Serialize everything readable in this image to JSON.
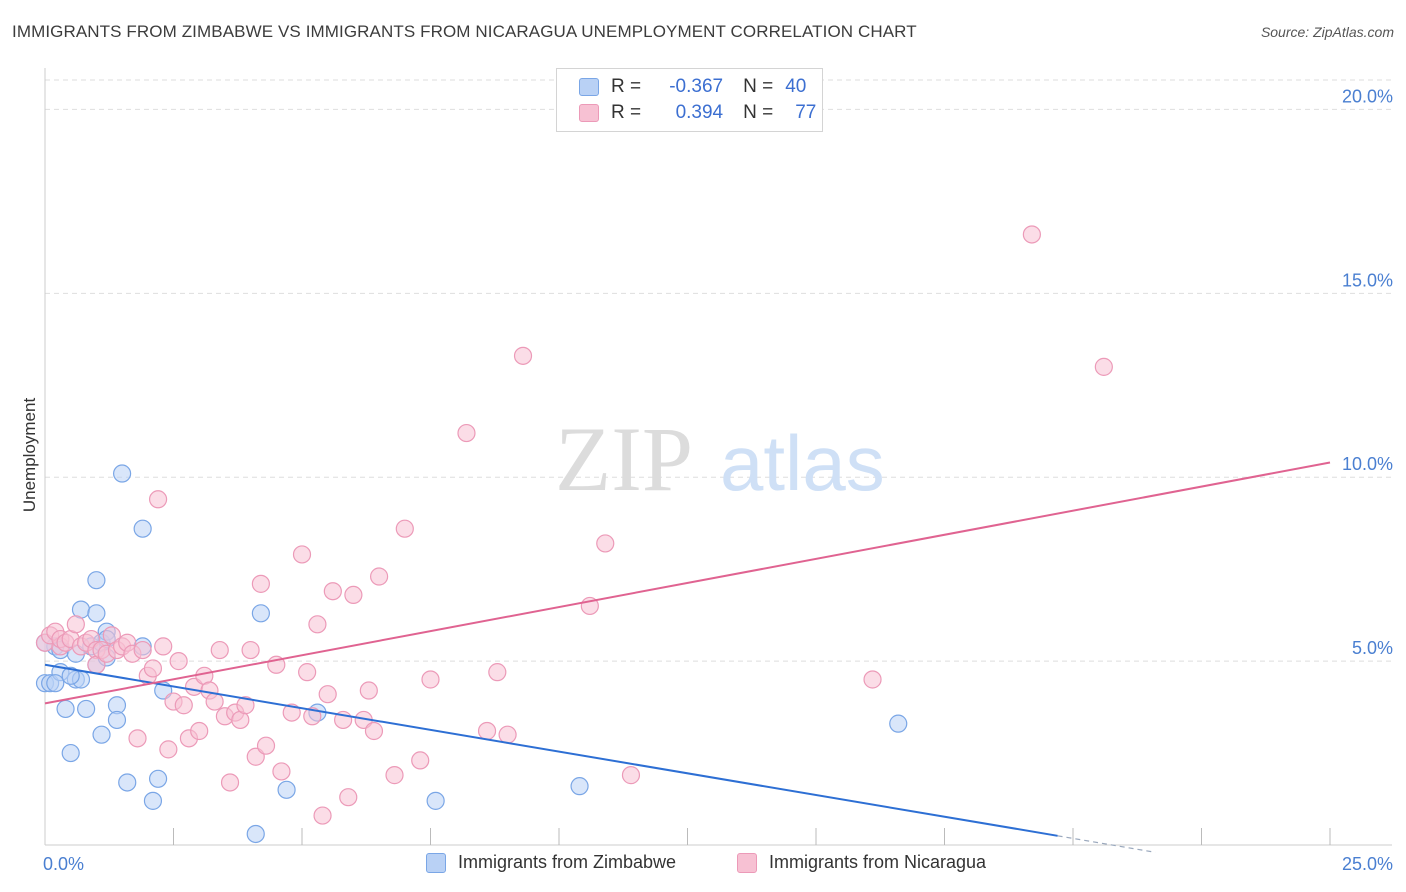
{
  "header": {
    "title": "IMMIGRANTS FROM ZIMBABWE VS IMMIGRANTS FROM NICARAGUA UNEMPLOYMENT CORRELATION CHART",
    "source": "Source: ZipAtlas.com"
  },
  "watermark": {
    "zip": "ZIP",
    "atlas": "atlas"
  },
  "legend": {
    "rows": [
      {
        "r_label": "R =",
        "r_value": "-0.367",
        "n_label": "N =",
        "n_value": "40"
      },
      {
        "r_label": "R =",
        "r_value": "0.394",
        "n_label": "N =",
        "n_value": "77"
      }
    ]
  },
  "bottom_legend": {
    "zimbabwe": "Immigrants from Zimbabwe",
    "nicaragua": "Immigrants from Nicaragua"
  },
  "colors": {
    "zimbabwe_fill": "#b9d1f5",
    "zimbabwe_stroke": "#7aa6e6",
    "zimbabwe_line": "#2d6fd4",
    "nicaragua_fill": "#f7c1d3",
    "nicaragua_stroke": "#ec9ab8",
    "nicaragua_line": "#e06391",
    "tick_text": "#4a7fd1",
    "grid": "#dedede"
  },
  "chart_data": {
    "type": "scatter",
    "title": "IMMIGRANTS FROM ZIMBABWE VS IMMIGRANTS FROM NICARAGUA UNEMPLOYMENT CORRELATION CHART",
    "xlabel": "",
    "ylabel": "Unemployment",
    "xlim": [
      0,
      25
    ],
    "ylim": [
      0,
      20.8
    ],
    "x_tick_labels": [
      "0.0%",
      "25.0%"
    ],
    "y_ticks": [
      5,
      10,
      15,
      20
    ],
    "y_tick_labels": [
      "5.0%",
      "10.0%",
      "15.0%",
      "20.0%"
    ],
    "grid": true,
    "series": [
      {
        "name": "Immigrants from Zimbabwe",
        "color": "#b9d1f5",
        "R": -0.367,
        "N": 40,
        "trend": {
          "x0": 0,
          "y0": 4.9,
          "x1": 19.7,
          "y1": 0.25,
          "dash_to_x": 21.6
        },
        "points": [
          [
            0.0,
            4.4
          ],
          [
            0.1,
            4.4
          ],
          [
            0.2,
            5.4
          ],
          [
            0.3,
            5.3
          ],
          [
            0.3,
            4.7
          ],
          [
            0.4,
            3.7
          ],
          [
            0.5,
            2.5
          ],
          [
            0.6,
            5.2
          ],
          [
            0.6,
            4.5
          ],
          [
            0.7,
            6.4
          ],
          [
            0.7,
            4.5
          ],
          [
            0.8,
            3.7
          ],
          [
            0.9,
            5.4
          ],
          [
            1.0,
            6.3
          ],
          [
            1.0,
            4.9
          ],
          [
            1.0,
            7.2
          ],
          [
            1.1,
            3.0
          ],
          [
            1.1,
            5.5
          ],
          [
            1.2,
            5.8
          ],
          [
            1.2,
            5.1
          ],
          [
            1.4,
            3.8
          ],
          [
            1.4,
            3.4
          ],
          [
            1.5,
            10.1
          ],
          [
            1.6,
            1.7
          ],
          [
            1.9,
            8.6
          ],
          [
            1.9,
            5.4
          ],
          [
            2.1,
            1.2
          ],
          [
            2.2,
            1.8
          ],
          [
            2.3,
            4.2
          ],
          [
            4.1,
            0.3
          ],
          [
            4.2,
            6.3
          ],
          [
            4.7,
            1.5
          ],
          [
            5.3,
            3.6
          ],
          [
            7.6,
            1.2
          ],
          [
            10.4,
            1.6
          ],
          [
            16.6,
            3.3
          ],
          [
            0.0,
            5.5
          ],
          [
            0.2,
            4.4
          ],
          [
            0.5,
            4.6
          ],
          [
            1.2,
            5.6
          ]
        ]
      },
      {
        "name": "Immigrants from Nicaragua",
        "color": "#f7c1d3",
        "R": 0.394,
        "N": 77,
        "trend": {
          "x0": 0,
          "y0": 3.85,
          "x1": 25,
          "y1": 10.4
        },
        "points": [
          [
            0.0,
            5.5
          ],
          [
            0.1,
            5.7
          ],
          [
            0.2,
            5.8
          ],
          [
            0.3,
            5.4
          ],
          [
            0.3,
            5.6
          ],
          [
            0.4,
            5.5
          ],
          [
            0.5,
            5.6
          ],
          [
            0.6,
            6.0
          ],
          [
            0.7,
            5.4
          ],
          [
            0.8,
            5.5
          ],
          [
            0.9,
            5.6
          ],
          [
            1.0,
            5.3
          ],
          [
            1.0,
            4.9
          ],
          [
            1.1,
            5.3
          ],
          [
            1.2,
            5.2
          ],
          [
            1.3,
            5.7
          ],
          [
            1.4,
            5.3
          ],
          [
            1.5,
            5.4
          ],
          [
            1.6,
            5.5
          ],
          [
            1.7,
            5.2
          ],
          [
            1.8,
            2.9
          ],
          [
            1.9,
            5.3
          ],
          [
            2.0,
            4.6
          ],
          [
            2.1,
            4.8
          ],
          [
            2.2,
            9.4
          ],
          [
            2.3,
            5.4
          ],
          [
            2.4,
            2.6
          ],
          [
            2.5,
            3.9
          ],
          [
            2.6,
            5.0
          ],
          [
            2.7,
            3.8
          ],
          [
            2.8,
            2.9
          ],
          [
            2.9,
            4.3
          ],
          [
            3.0,
            3.1
          ],
          [
            3.1,
            4.6
          ],
          [
            3.2,
            4.2
          ],
          [
            3.3,
            3.9
          ],
          [
            3.4,
            5.3
          ],
          [
            3.5,
            3.5
          ],
          [
            3.6,
            1.7
          ],
          [
            3.7,
            3.6
          ],
          [
            3.8,
            3.4
          ],
          [
            3.9,
            3.8
          ],
          [
            4.0,
            5.3
          ],
          [
            4.1,
            2.4
          ],
          [
            4.2,
            7.1
          ],
          [
            4.3,
            2.7
          ],
          [
            4.5,
            4.9
          ],
          [
            4.6,
            2.0
          ],
          [
            4.8,
            3.6
          ],
          [
            5.0,
            7.9
          ],
          [
            5.1,
            4.7
          ],
          [
            5.2,
            3.5
          ],
          [
            5.3,
            6.0
          ],
          [
            5.4,
            0.8
          ],
          [
            5.5,
            4.1
          ],
          [
            5.6,
            6.9
          ],
          [
            5.8,
            3.4
          ],
          [
            5.9,
            1.3
          ],
          [
            6.0,
            6.8
          ],
          [
            6.2,
            3.4
          ],
          [
            6.3,
            4.2
          ],
          [
            6.4,
            3.1
          ],
          [
            6.5,
            7.3
          ],
          [
            6.8,
            1.9
          ],
          [
            7.0,
            8.6
          ],
          [
            7.3,
            2.3
          ],
          [
            7.5,
            4.5
          ],
          [
            8.2,
            11.2
          ],
          [
            8.6,
            3.1
          ],
          [
            8.8,
            4.7
          ],
          [
            9.0,
            3.0
          ],
          [
            9.3,
            13.3
          ],
          [
            10.6,
            6.5
          ],
          [
            10.9,
            8.2
          ],
          [
            11.4,
            1.9
          ],
          [
            16.1,
            4.5
          ],
          [
            19.2,
            16.6
          ]
        ]
      }
    ],
    "extra_points": [
      [
        20.6,
        13.0
      ]
    ]
  }
}
